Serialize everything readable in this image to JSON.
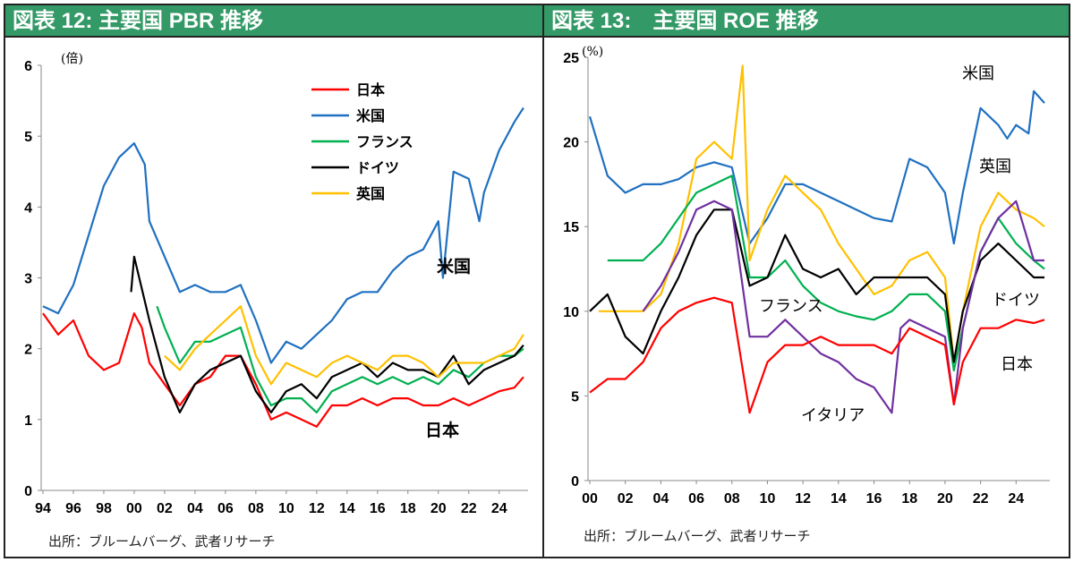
{
  "chart_data": [
    {
      "type": "line",
      "title": "図表 12: 主要国 PBR 推移",
      "ylabel": "(倍)",
      "ylim": [
        0,
        6
      ],
      "yticks": [
        "0",
        "1",
        "2",
        "3",
        "4",
        "5",
        "6"
      ],
      "xticks": [
        "94",
        "96",
        "98",
        "00",
        "02",
        "04",
        "06",
        "08",
        "10",
        "12",
        "14",
        "16",
        "18",
        "20",
        "22",
        "24"
      ],
      "xlim": [
        1994,
        2025.9
      ],
      "legend_position": "top-center",
      "source": "出所：ブルームバーグ、武者リサーチ",
      "annotations": [
        "米国",
        "日本"
      ],
      "series": [
        {
          "name": "日本",
          "color": "#ff0000",
          "x": [
            1994,
            1995,
            1996,
            1997,
            1998,
            1999,
            2000,
            2000.5,
            2001,
            2002,
            2003,
            2004,
            2005,
            2006,
            2007,
            2008,
            2009,
            2010,
            2011,
            2012,
            2013,
            2014,
            2015,
            2016,
            2017,
            2018,
            2019,
            2020,
            2021,
            2022,
            2023,
            2024,
            2025,
            2025.6
          ],
          "y": [
            2.5,
            2.2,
            2.4,
            1.9,
            1.7,
            1.8,
            2.5,
            2.3,
            1.8,
            1.5,
            1.2,
            1.5,
            1.6,
            1.9,
            1.9,
            1.5,
            1.0,
            1.1,
            1.0,
            0.9,
            1.2,
            1.2,
            1.3,
            1.2,
            1.3,
            1.3,
            1.2,
            1.2,
            1.3,
            1.2,
            1.3,
            1.4,
            1.45,
            1.6
          ]
        },
        {
          "name": "米国",
          "color": "#1f70c1",
          "x": [
            1994,
            1995,
            1996,
            1997,
            1998,
            1999,
            2000,
            2000.7,
            2001,
            2002,
            2003,
            2004,
            2005,
            2006,
            2007,
            2008,
            2009,
            2010,
            2011,
            2012,
            2013,
            2014,
            2015,
            2016,
            2017,
            2018,
            2019,
            2020,
            2020.3,
            2021,
            2022,
            2022.7,
            2023,
            2024,
            2025,
            2025.6
          ],
          "y": [
            2.6,
            2.5,
            2.9,
            3.6,
            4.3,
            4.7,
            4.9,
            4.6,
            3.8,
            3.3,
            2.8,
            2.9,
            2.8,
            2.8,
            2.9,
            2.4,
            1.8,
            2.1,
            2.0,
            2.2,
            2.4,
            2.7,
            2.8,
            2.8,
            3.1,
            3.3,
            3.4,
            3.8,
            3.0,
            4.5,
            4.4,
            3.8,
            4.2,
            4.8,
            5.2,
            5.4
          ]
        },
        {
          "name": "フランス",
          "color": "#00b050",
          "x": [
            2001.5,
            2002,
            2003,
            2004,
            2005,
            2006,
            2007,
            2008,
            2009,
            2010,
            2011,
            2012,
            2013,
            2014,
            2015,
            2016,
            2017,
            2018,
            2019,
            2020,
            2021,
            2022,
            2023,
            2024,
            2025,
            2025.6
          ],
          "y": [
            2.6,
            2.3,
            1.8,
            2.1,
            2.1,
            2.2,
            2.3,
            1.6,
            1.2,
            1.3,
            1.3,
            1.1,
            1.4,
            1.5,
            1.6,
            1.5,
            1.6,
            1.5,
            1.6,
            1.5,
            1.7,
            1.6,
            1.8,
            1.9,
            1.9,
            2.0
          ]
        },
        {
          "name": "ドイツ",
          "color": "#000000",
          "x": [
            1999.8,
            2000,
            2001,
            2002,
            2003,
            2004,
            2005,
            2006,
            2007,
            2008,
            2009,
            2010,
            2011,
            2012,
            2013,
            2014,
            2015,
            2016,
            2017,
            2018,
            2019,
            2020,
            2021,
            2022,
            2023,
            2024,
            2025,
            2025.6
          ],
          "y": [
            2.8,
            3.3,
            2.4,
            1.6,
            1.1,
            1.5,
            1.7,
            1.8,
            1.9,
            1.4,
            1.1,
            1.4,
            1.5,
            1.3,
            1.6,
            1.7,
            1.8,
            1.6,
            1.8,
            1.7,
            1.7,
            1.6,
            1.9,
            1.5,
            1.7,
            1.8,
            1.9,
            2.05
          ]
        },
        {
          "name": "英国",
          "color": "#ffc000",
          "x": [
            2002,
            2003,
            2004,
            2005,
            2006,
            2007,
            2008,
            2009,
            2010,
            2011,
            2012,
            2013,
            2014,
            2015,
            2016,
            2017,
            2018,
            2019,
            2020,
            2021,
            2022,
            2023,
            2024,
            2025,
            2025.6
          ],
          "y": [
            1.9,
            1.7,
            2.0,
            2.2,
            2.4,
            2.6,
            1.9,
            1.5,
            1.8,
            1.7,
            1.6,
            1.8,
            1.9,
            1.8,
            1.7,
            1.9,
            1.9,
            1.8,
            1.6,
            1.8,
            1.8,
            1.8,
            1.9,
            2.0,
            2.2
          ]
        }
      ]
    },
    {
      "type": "line",
      "title": "図表 13:　主要国 ROE 推移",
      "ylabel": "(%)",
      "ylim": [
        0,
        25
      ],
      "yticks": [
        "0",
        "5",
        "10",
        "15",
        "20",
        "25"
      ],
      "xticks": [
        "00",
        "02",
        "04",
        "06",
        "08",
        "10",
        "12",
        "14",
        "16",
        "18",
        "20",
        "22",
        "24"
      ],
      "xlim": [
        2000,
        2025.9
      ],
      "source": "出所：ブルームバーグ、武者リサーチ",
      "annotations": [
        "米国",
        "英国",
        "フランス",
        "ドイツ",
        "日本",
        "イタリア"
      ],
      "series": [
        {
          "name": "米国",
          "color": "#1f70c1",
          "x": [
            2000,
            2001,
            2002,
            2003,
            2004,
            2005,
            2006,
            2007,
            2008,
            2009,
            2010,
            2011,
            2012,
            2013,
            2014,
            2015,
            2016,
            2017,
            2018,
            2019,
            2020,
            2020.5,
            2021,
            2022,
            2023,
            2023.5,
            2024,
            2024.7,
            2025,
            2025.6
          ],
          "y": [
            21.5,
            18,
            17,
            17.5,
            17.5,
            17.8,
            18.5,
            18.8,
            18.5,
            14,
            15.5,
            17.5,
            17.5,
            17,
            16.5,
            16,
            15.5,
            15.3,
            19,
            18.5,
            17,
            14,
            17,
            22,
            21,
            20.2,
            21,
            20.5,
            23,
            22.3
          ]
        },
        {
          "name": "英国",
          "color": "#ffc000",
          "x": [
            2000.5,
            2001,
            2002,
            2003,
            2004,
            2005,
            2006,
            2007,
            2008,
            2008.6,
            2009,
            2010,
            2011,
            2012,
            2013,
            2014,
            2015,
            2016,
            2017,
            2018,
            2019,
            2020,
            2020.5,
            2021,
            2022,
            2023,
            2024,
            2025,
            2025.6
          ],
          "y": [
            10,
            10,
            10,
            10,
            11,
            14,
            19,
            20,
            19,
            24.5,
            13,
            16,
            18,
            17,
            16,
            14,
            12.5,
            11,
            11.5,
            13,
            13.5,
            12,
            7,
            10,
            15,
            17,
            16,
            15.5,
            15
          ]
        },
        {
          "name": "フランス",
          "color": "#00b050",
          "x": [
            2001,
            2002,
            2003,
            2004,
            2005,
            2006,
            2007,
            2008,
            2009,
            2010,
            2011,
            2012,
            2013,
            2014,
            2015,
            2016,
            2017,
            2018,
            2019,
            2020,
            2020.5,
            2021,
            2022,
            2023,
            2024,
            2025,
            2025.6
          ],
          "y": [
            13,
            13,
            13,
            14,
            15.5,
            17,
            17.5,
            18,
            12,
            12,
            13,
            11.5,
            10.5,
            10,
            9.7,
            9.5,
            10,
            11,
            11,
            10,
            6.5,
            9,
            13.5,
            15.5,
            14,
            13,
            12.5
          ]
        },
        {
          "name": "ドイツ",
          "color": "#000000",
          "x": [
            2000,
            2001,
            2002,
            2003,
            2004,
            2005,
            2006,
            2007,
            2008,
            2009,
            2010,
            2011,
            2012,
            2013,
            2014,
            2015,
            2016,
            2017,
            2018,
            2019,
            2020,
            2020.5,
            2021,
            2022,
            2023,
            2024,
            2025,
            2025.6
          ],
          "y": [
            10,
            11,
            8.5,
            7.5,
            10,
            12,
            14.5,
            16,
            16,
            11.5,
            12,
            14.5,
            12.5,
            12,
            12.5,
            11,
            12,
            12,
            12,
            12,
            11,
            7,
            10,
            13,
            14,
            13,
            12,
            12
          ]
        },
        {
          "name": "イタリア",
          "color": "#7030a0",
          "x": [
            2003,
            2004,
            2005,
            2006,
            2007,
            2008,
            2009,
            2010,
            2011,
            2012,
            2013,
            2014,
            2015,
            2016,
            2017,
            2017.5,
            2018,
            2019,
            2020,
            2020.5,
            2021,
            2022,
            2023,
            2024,
            2025,
            2025.6
          ],
          "y": [
            10,
            11.5,
            13.5,
            16,
            16.5,
            16,
            8.5,
            8.5,
            9.5,
            8.5,
            7.5,
            7,
            6,
            5.5,
            4,
            9,
            9.5,
            9,
            8.5,
            4.5,
            9,
            13.5,
            15.5,
            16.5,
            13,
            13
          ]
        },
        {
          "name": "日本",
          "color": "#ff0000",
          "x": [
            2000,
            2001,
            2002,
            2003,
            2004,
            2005,
            2006,
            2007,
            2008,
            2009,
            2010,
            2011,
            2012,
            2013,
            2014,
            2015,
            2016,
            2017,
            2018,
            2019,
            2020,
            2020.5,
            2021,
            2022,
            2023,
            2024,
            2025,
            2025.6
          ],
          "y": [
            5.2,
            6,
            6,
            7,
            9,
            10,
            10.5,
            10.8,
            10.5,
            4,
            7,
            8,
            8,
            8.5,
            8,
            8,
            8,
            7.5,
            9,
            8.5,
            8,
            4.5,
            7,
            9,
            9,
            9.5,
            9.3,
            9.5
          ]
        }
      ]
    }
  ]
}
